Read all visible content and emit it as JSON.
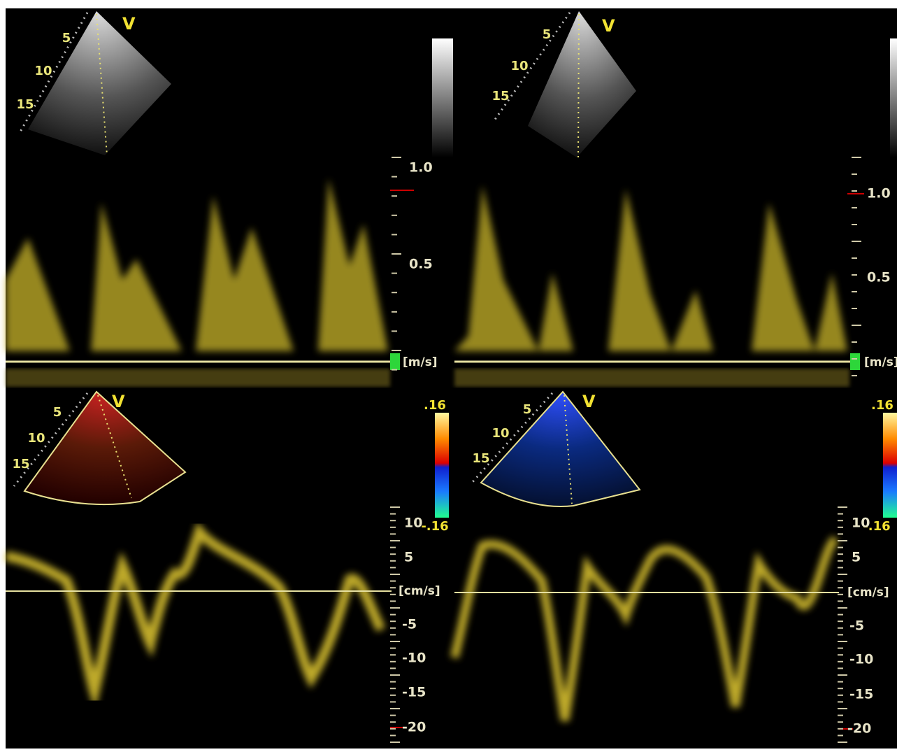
{
  "panels": [
    {
      "sector": {
        "marker": "V",
        "depths": [
          "5",
          "10",
          "15"
        ]
      },
      "scale": {
        "labels": [
          "1.0",
          "0.5"
        ],
        "unit": "[m/s]"
      }
    },
    {
      "sector": {
        "marker": "V",
        "depths": [
          "5",
          "10",
          "15"
        ]
      },
      "scale": {
        "labels": [
          "1.0",
          "0.5"
        ],
        "unit": "[m/s]"
      }
    },
    {
      "sector": {
        "marker": "V",
        "depths": [
          "5",
          "10",
          "15"
        ]
      },
      "color_bar": {
        "max": ".16",
        "min": "-.16"
      },
      "scale": {
        "labels": [
          "10",
          "5",
          "-5",
          "-10",
          "-15",
          "-20"
        ],
        "unit": "[cm/s]"
      }
    },
    {
      "sector": {
        "marker": "V",
        "depths": [
          "5",
          "10",
          "15"
        ]
      },
      "color_bar": {
        "max": ".16",
        "min": "-.16"
      },
      "scale": {
        "labels": [
          "10",
          "5",
          "-5",
          "-10",
          "-15",
          "-20"
        ],
        "unit": "[cm/s]"
      }
    }
  ]
}
